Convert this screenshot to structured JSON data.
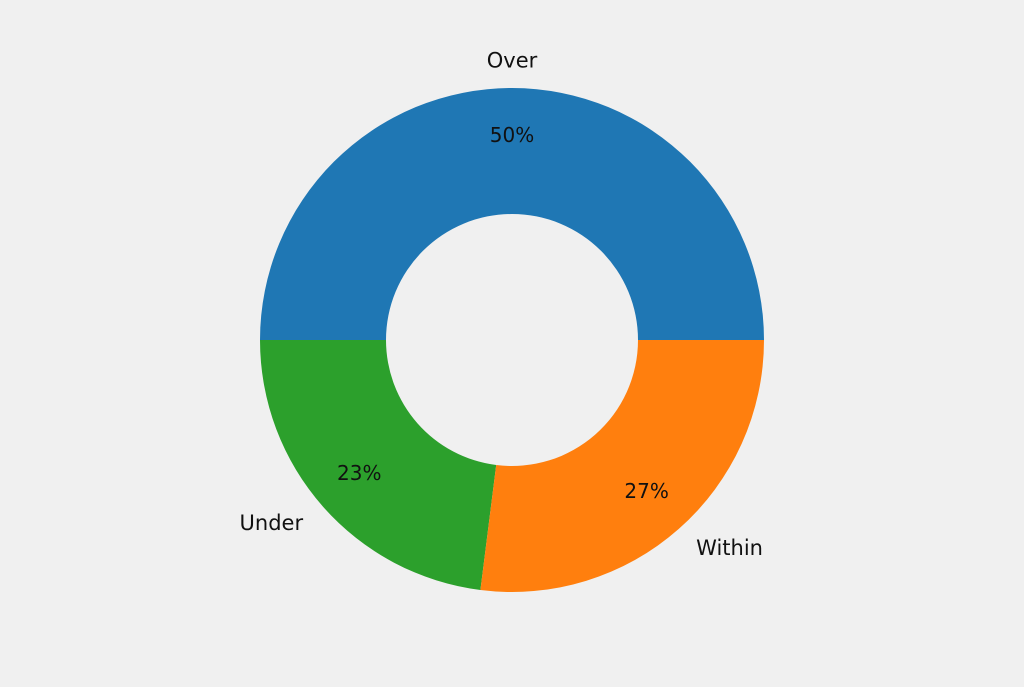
{
  "chart_data": {
    "type": "pie",
    "variant": "donut",
    "categories": [
      "Over",
      "Under",
      "Within"
    ],
    "values": [
      50,
      23,
      27
    ],
    "value_labels": [
      "50%",
      "23%",
      "27%"
    ],
    "colors": [
      "#1f77b4",
      "#2ca02c",
      "#ff7f0e"
    ],
    "title": "",
    "legend": "none"
  }
}
